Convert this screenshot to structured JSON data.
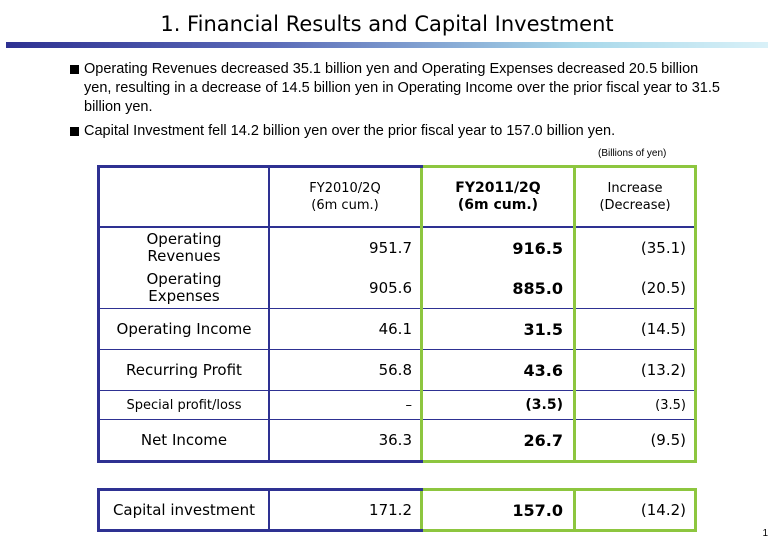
{
  "title": "1. Financial Results and Capital Investment",
  "bullets": [
    "Operating Revenues decreased 35.1 billion yen and Operating Expenses decreased 20.5 billion yen, resulting in a decrease of 14.5 billion yen in Operating Income over the prior fiscal year to 31.5 billion yen.",
    "Capital Investment fell 14.2 billion yen over the prior fiscal year to 157.0 billion yen."
  ],
  "units": "(Billions of yen)",
  "table": {
    "headers": {
      "col2_line1": "FY2010/2Q",
      "col2_line2": "(6m cum.)",
      "col3_line1": "FY2011/2Q",
      "col3_line2": "(6m cum.)",
      "col4_line1": "Increase",
      "col4_line2": "(Decrease)"
    },
    "rows": [
      {
        "label_line1": "Operating",
        "label_line2": "Revenues",
        "fy2010": "951.7",
        "fy2011": "916.5",
        "change": "(35.1)"
      },
      {
        "label_line1": "Operating",
        "label_line2": "Expenses",
        "fy2010": "905.6",
        "fy2011": "885.0",
        "change": "(20.5)"
      },
      {
        "label": "Operating Income",
        "fy2010": "46.1",
        "fy2011": "31.5",
        "change": "(14.5)"
      },
      {
        "label": "Recurring Profit",
        "fy2010": "56.8",
        "fy2011": "43.6",
        "change": "(13.2)"
      },
      {
        "label": "Special profit/loss",
        "fy2010": "–",
        "fy2011": "(3.5)",
        "change": "(3.5)"
      },
      {
        "label": "Net Income",
        "fy2010": "36.3",
        "fy2011": "26.7",
        "change": "(9.5)"
      }
    ]
  },
  "capital": {
    "label": "Capital investment",
    "fy2010": "171.2",
    "fy2011": "157.0",
    "change": "(14.2)"
  },
  "page_number": "1"
}
